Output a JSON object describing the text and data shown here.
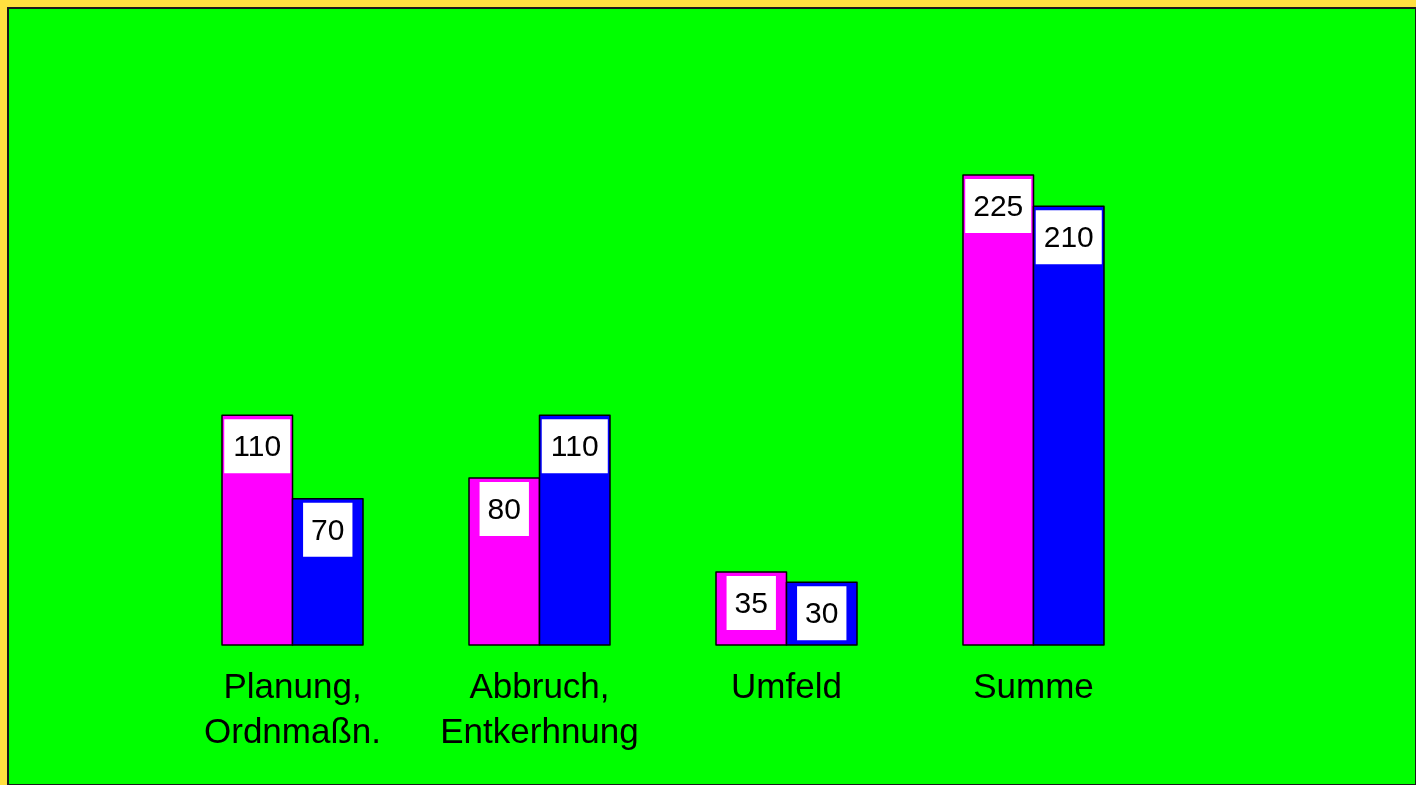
{
  "chart_data": {
    "type": "bar",
    "categories": [
      "Planung, Ordnmaßn.",
      "Abbruch, Entkerhnung",
      "Umfeld",
      "Summe"
    ],
    "series": [
      {
        "color": "#ff00ff",
        "values": [
          110,
          80,
          35,
          225
        ]
      },
      {
        "color": "#0000ff",
        "values": [
          70,
          110,
          30,
          210
        ]
      }
    ],
    "data_labels": true
  }
}
